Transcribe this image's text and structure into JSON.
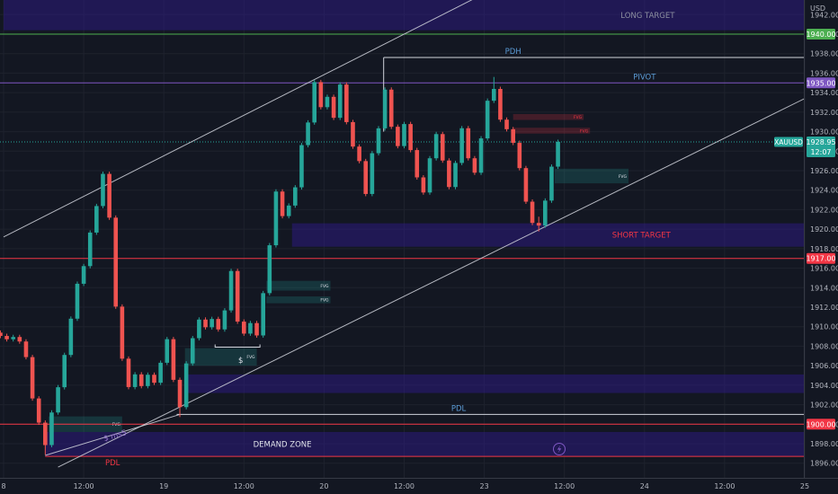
{
  "chart_data": {
    "type": "candlestick",
    "symbol": "XAUUSD",
    "currency_label": "USD",
    "last_price": "1928.95",
    "countdown": "12:07",
    "ylim": [
      1894.5,
      1943.5
    ],
    "y_ticks": [
      1896,
      1898,
      1900,
      1902,
      1904,
      1906,
      1908,
      1910,
      1912,
      1914,
      1916,
      1918,
      1920,
      1922,
      1924,
      1926,
      1928,
      1930,
      1932,
      1934,
      1936,
      1938,
      1940,
      1942
    ],
    "x_ticks": [
      {
        "t": 0.0,
        "label": "8"
      },
      {
        "t": 12.5,
        "label": "12:00"
      },
      {
        "t": 25.0,
        "label": "19"
      },
      {
        "t": 37.5,
        "label": "12:00"
      },
      {
        "t": 50.0,
        "label": "20"
      },
      {
        "t": 62.5,
        "label": "12:00"
      },
      {
        "t": 75.0,
        "label": "23"
      },
      {
        "t": 87.5,
        "label": "12:00"
      },
      {
        "t": 100.0,
        "label": "24"
      },
      {
        "t": 112.5,
        "label": "12:00"
      },
      {
        "t": 125.0,
        "label": "25"
      }
    ],
    "price_lines": [
      {
        "name": "long-target-line",
        "price": 1940.0,
        "color": "#4caf50",
        "badge": "1940.00"
      },
      {
        "name": "pivot-line",
        "price": 1935.0,
        "color": "#7e57c2",
        "badge": "1935.00"
      },
      {
        "name": "short-target-line",
        "price": 1917.0,
        "color": "#f23645",
        "badge": "1917.00"
      },
      {
        "name": "pdl-red-line",
        "price": 1900.0,
        "color": "#f23645",
        "badge": "1900.00"
      }
    ],
    "zones": [
      {
        "name": "long-target-zone",
        "t0": 0,
        "t1": 125,
        "y0": 1940.4,
        "y1": 1943.5,
        "color": "#311b92",
        "label": "LONG TARGET",
        "label_t": 100.5,
        "label_color": "#8c8fa0"
      },
      {
        "name": "short-target-zone",
        "t0": 45,
        "t1": 125,
        "y0": 1918.2,
        "y1": 1920.6,
        "color": "#311b92",
        "label": "SHORT TARGET",
        "label_t": 99.5,
        "label_color": "#f23645"
      },
      {
        "name": "demand-zone",
        "t0": 6.5,
        "t1": 125,
        "y0": 1896.7,
        "y1": 1899.2,
        "color": "#311b92",
        "label": "DEMAND ZONE",
        "label_t": 43.5,
        "label_color": "#e0e3eb"
      },
      {
        "name": "mid-demand-zone",
        "t0": 28.5,
        "t1": 125,
        "y0": 1903.2,
        "y1": 1905.1,
        "color": "#311b92",
        "label": "",
        "label_t": 0,
        "label_color": "#e0e3eb"
      }
    ],
    "levels": [
      {
        "name": "pdh-line",
        "t0": 59.3,
        "t1": 125,
        "price": 1937.6,
        "color": "#d1d4dc",
        "label": "PDH",
        "label_t": 79.5,
        "label_color": "#5b9bd5"
      },
      {
        "name": "pivot-label",
        "t0": 0,
        "t1": 0,
        "price": 1935.0,
        "color": "",
        "label": "PIVOT",
        "label_t": 100.0,
        "label_color": "#5b9bd5"
      },
      {
        "name": "pdl-white-line",
        "t0": 27.0,
        "t1": 125,
        "price": 1901.0,
        "color": "#d1d4dc",
        "label": "PDL",
        "label_t": 71.0,
        "label_color": "#5b9bd5"
      },
      {
        "name": "pdl-low-line",
        "t0": 6.5,
        "t1": 125,
        "price": 1896.7,
        "color": "#f23645",
        "label": "PDL",
        "label_t": 17.0,
        "label_color": "#f23645"
      }
    ],
    "fvgs": [
      {
        "t0": 79.5,
        "t1": 90.5,
        "y0": 1931.2,
        "y1": 1931.8,
        "color": "#f23645"
      },
      {
        "t0": 79.5,
        "t1": 91.5,
        "y0": 1929.8,
        "y1": 1930.4,
        "color": "#f23645"
      },
      {
        "t0": 86.0,
        "t1": 97.5,
        "y0": 1924.7,
        "y1": 1926.2,
        "color": "#26a69a"
      },
      {
        "t0": 41.0,
        "t1": 51.0,
        "y0": 1913.7,
        "y1": 1914.7,
        "color": "#26a69a"
      },
      {
        "t0": 41.0,
        "t1": 51.0,
        "y0": 1912.4,
        "y1": 1913.1,
        "color": "#26a69a"
      },
      {
        "t0": 7.0,
        "t1": 18.5,
        "y0": 1899.2,
        "y1": 1900.8,
        "color": "#26a69a"
      },
      {
        "t0": 28.3,
        "t1": 39.5,
        "y0": 1906.0,
        "y1": 1907.8,
        "color": "#26a69a"
      }
    ],
    "fvg_label": "FVG",
    "trendlines": [
      {
        "name": "channel-upper-line",
        "t0": 0,
        "y0": 1919.2,
        "t1": 74.5,
        "y1": 1944.0
      },
      {
        "name": "channel-lower-line",
        "t0": 8.5,
        "y0": 1895.6,
        "t1": 125,
        "y1": 1933.4
      },
      {
        "name": "swing-low-line",
        "t0": 6.5,
        "y0": 1896.8,
        "t1": 27.5,
        "y1": 1901.0
      }
    ],
    "sweep_marks": [
      {
        "name": "sweep-dollar",
        "text": "$",
        "t": 37.0,
        "price": 1906.3
      },
      {
        "name": "sweep-dollar-rotated",
        "text": "$ ms5",
        "t": 17.5,
        "price": 1898.6
      }
    ],
    "candles": [
      [
        -0.5,
        1909.39,
        1909.62,
        1908.82,
        1909.05
      ],
      [
        0.5,
        1909.05,
        1909.28,
        1908.48,
        1908.71
      ],
      [
        1.5,
        1908.71,
        1909.17,
        1908.48,
        1908.94
      ],
      [
        2.5,
        1908.94,
        1909.17,
        1908.25,
        1908.48
      ],
      [
        3.5,
        1908.48,
        1908.71,
        1906.65,
        1906.88
      ],
      [
        4.5,
        1906.88,
        1907.11,
        1902.41,
        1902.64
      ],
      [
        5.5,
        1902.64,
        1902.87,
        1899.93,
        1900.16
      ],
      [
        6.5,
        1900.16,
        1900.39,
        1896.86,
        1897.86
      ],
      [
        7.5,
        1897.86,
        1901.43,
        1897.63,
        1901.2
      ],
      [
        8.5,
        1901.2,
        1904.02,
        1900.97,
        1903.79
      ],
      [
        9.5,
        1903.79,
        1907.33,
        1903.56,
        1907.1
      ],
      [
        10.5,
        1907.1,
        1911.05,
        1906.87,
        1910.82
      ],
      [
        11.5,
        1910.82,
        1914.63,
        1910.59,
        1914.4
      ],
      [
        12.5,
        1914.4,
        1916.44,
        1914.17,
        1916.21
      ],
      [
        13.5,
        1916.21,
        1919.88,
        1915.98,
        1919.65
      ],
      [
        14.5,
        1919.65,
        1922.6,
        1919.42,
        1922.37
      ],
      [
        15.5,
        1922.37,
        1925.9,
        1922.14,
        1925.67
      ],
      [
        16.5,
        1925.67,
        1925.9,
        1920.95,
        1921.18
      ],
      [
        17.5,
        1921.18,
        1921.41,
        1911.83,
        1912.06
      ],
      [
        18.5,
        1912.06,
        1912.29,
        1906.49,
        1906.72
      ],
      [
        19.5,
        1906.72,
        1906.95,
        1903.58,
        1903.81
      ],
      [
        20.5,
        1903.81,
        1905.34,
        1903.58,
        1905.11
      ],
      [
        21.5,
        1905.11,
        1905.34,
        1903.68,
        1903.91
      ],
      [
        22.5,
        1903.91,
        1905.3,
        1903.68,
        1905.07
      ],
      [
        23.5,
        1905.07,
        1905.3,
        1904.02,
        1904.25
      ],
      [
        24.5,
        1904.25,
        1906.53,
        1904.02,
        1906.3
      ],
      [
        25.5,
        1906.3,
        1908.95,
        1906.07,
        1908.72
      ],
      [
        26.5,
        1908.72,
        1908.95,
        1904.32,
        1904.55
      ],
      [
        27.5,
        1904.55,
        1904.78,
        1900.73,
        1901.75
      ],
      [
        28.5,
        1901.75,
        1906.46,
        1901.52,
        1906.23
      ],
      [
        29.5,
        1906.23,
        1909.05,
        1906.0,
        1908.82
      ],
      [
        30.5,
        1908.82,
        1910.96,
        1908.59,
        1910.73
      ],
      [
        31.5,
        1910.73,
        1910.96,
        1909.71,
        1909.94
      ],
      [
        32.5,
        1909.94,
        1911.02,
        1909.71,
        1910.79
      ],
      [
        33.5,
        1910.79,
        1911.02,
        1909.49,
        1909.72
      ],
      [
        34.5,
        1909.72,
        1911.9,
        1909.49,
        1911.67
      ],
      [
        35.5,
        1911.67,
        1915.94,
        1911.44,
        1915.71
      ],
      [
        36.5,
        1915.71,
        1915.94,
        1910.29,
        1910.52
      ],
      [
        37.5,
        1910.52,
        1910.75,
        1909.06,
        1909.29
      ],
      [
        38.5,
        1909.29,
        1910.6,
        1909.06,
        1910.37
      ],
      [
        39.5,
        1910.37,
        1910.6,
        1908.87,
        1909.1
      ],
      [
        40.5,
        1909.1,
        1913.67,
        1908.87,
        1913.44
      ],
      [
        41.5,
        1913.44,
        1918.58,
        1913.21,
        1918.35
      ],
      [
        42.5,
        1918.35,
        1924.09,
        1918.12,
        1923.86
      ],
      [
        43.5,
        1923.86,
        1924.09,
        1921.11,
        1921.34
      ],
      [
        44.5,
        1921.34,
        1922.65,
        1921.11,
        1922.42
      ],
      [
        45.5,
        1922.42,
        1924.52,
        1922.19,
        1924.29
      ],
      [
        46.5,
        1924.29,
        1928.85,
        1924.06,
        1928.62
      ],
      [
        47.5,
        1928.62,
        1931.17,
        1928.39,
        1930.94
      ],
      [
        48.5,
        1930.94,
        1935.31,
        1930.71,
        1935.08
      ],
      [
        49.5,
        1935.08,
        1935.31,
        1932.28,
        1932.51
      ],
      [
        50.5,
        1932.51,
        1933.8,
        1932.28,
        1933.57
      ],
      [
        51.5,
        1933.57,
        1933.8,
        1931.19,
        1931.42
      ],
      [
        52.5,
        1931.42,
        1935.06,
        1931.19,
        1934.83
      ],
      [
        53.5,
        1934.83,
        1935.06,
        1930.75,
        1930.98
      ],
      [
        54.5,
        1930.98,
        1931.21,
        1928.24,
        1928.47
      ],
      [
        55.5,
        1928.47,
        1928.7,
        1926.75,
        1926.98
      ],
      [
        56.5,
        1926.98,
        1927.21,
        1923.38,
        1923.61
      ],
      [
        57.5,
        1923.61,
        1928.02,
        1923.38,
        1927.79
      ],
      [
        58.5,
        1927.79,
        1930.57,
        1927.56,
        1930.34
      ],
      [
        59.5,
        1930.34,
        1934.54,
        1930.11,
        1934.31
      ],
      [
        60.5,
        1934.31,
        1934.54,
        1930.27,
        1930.5
      ],
      [
        61.5,
        1930.5,
        1930.73,
        1928.29,
        1928.52
      ],
      [
        62.5,
        1928.52,
        1931.01,
        1928.29,
        1930.78
      ],
      [
        63.5,
        1930.78,
        1931.01,
        1927.88,
        1928.11
      ],
      [
        64.5,
        1928.11,
        1928.34,
        1925.08,
        1925.31
      ],
      [
        65.5,
        1925.31,
        1925.54,
        1923.53,
        1923.76
      ],
      [
        66.5,
        1923.76,
        1927.5,
        1923.53,
        1927.27
      ],
      [
        67.5,
        1927.27,
        1929.98,
        1927.04,
        1929.75
      ],
      [
        68.5,
        1929.75,
        1929.98,
        1926.81,
        1927.04
      ],
      [
        69.5,
        1927.04,
        1927.27,
        1924.09,
        1924.32
      ],
      [
        70.5,
        1924.32,
        1927.02,
        1924.09,
        1926.79
      ],
      [
        71.5,
        1926.79,
        1930.58,
        1926.56,
        1930.35
      ],
      [
        72.5,
        1930.35,
        1930.58,
        1927.04,
        1927.27
      ],
      [
        73.5,
        1927.27,
        1927.5,
        1925.56,
        1925.79
      ],
      [
        74.5,
        1925.79,
        1929.54,
        1925.56,
        1929.31
      ],
      [
        75.5,
        1929.31,
        1933.4,
        1929.08,
        1933.17
      ],
      [
        76.5,
        1933.17,
        1935.61,
        1932.94,
        1934.38
      ],
      [
        77.5,
        1934.38,
        1934.61,
        1931.0,
        1931.23
      ],
      [
        78.5,
        1931.23,
        1931.46,
        1930.02,
        1930.25
      ],
      [
        79.5,
        1930.25,
        1930.48,
        1928.62,
        1928.85
      ],
      [
        80.5,
        1928.85,
        1929.08,
        1926.03,
        1926.26
      ],
      [
        81.5,
        1926.26,
        1926.49,
        1922.59,
        1922.82
      ],
      [
        82.5,
        1922.82,
        1923.05,
        1920.41,
        1920.64
      ],
      [
        83.5,
        1920.64,
        1921.28,
        1919.76,
        1920.37
      ],
      [
        84.5,
        1920.37,
        1923.16,
        1920.14,
        1922.93
      ],
      [
        85.5,
        1922.93,
        1926.64,
        1922.7,
        1926.41
      ],
      [
        86.5,
        1926.41,
        1929.18,
        1926.18,
        1928.95
      ]
    ]
  }
}
